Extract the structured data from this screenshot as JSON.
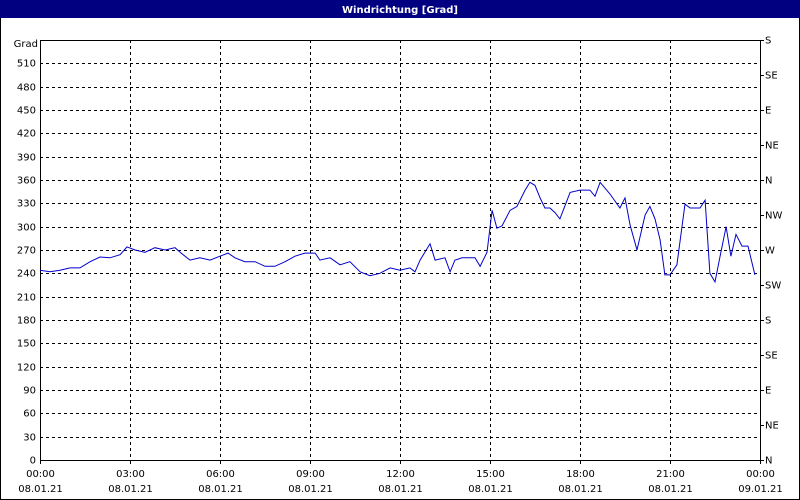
{
  "chart_data": {
    "type": "line",
    "title": "Windrichtung [Grad]",
    "y_label": "Grad",
    "x": [
      0,
      0.33,
      0.67,
      1,
      1.33,
      1.67,
      2,
      2.33,
      2.67,
      2.9,
      3.17,
      3.5,
      3.83,
      4.17,
      4.5,
      4.67,
      5,
      5.33,
      5.67,
      6,
      6.27,
      6.5,
      6.83,
      7.17,
      7.5,
      7.83,
      8.17,
      8.5,
      8.83,
      9.17,
      9.33,
      9.67,
      10,
      10.33,
      10.67,
      11,
      11.33,
      11.67,
      12,
      12.33,
      12.5,
      12.67,
      13,
      13.17,
      13.5,
      13.67,
      13.83,
      14.07,
      14.5,
      14.67,
      14.9,
      15.07,
      15.23,
      15.4,
      15.67,
      15.9,
      16.17,
      16.33,
      16.5,
      16.67,
      16.83,
      17,
      17.17,
      17.33,
      17.67,
      18,
      18.33,
      18.5,
      18.67,
      19,
      19.33,
      19.5,
      19.67,
      19.9,
      20.17,
      20.33,
      20.5,
      20.67,
      20.83,
      21,
      21.23,
      21.5,
      21.67,
      22,
      22.17,
      22.33,
      22.5,
      22.67,
      22.87,
      23.03,
      23.2,
      23.4,
      23.6,
      23.83
    ],
    "series": [
      {
        "name": "Windrichtung",
        "color": "#0000cc",
        "values": [
          244,
          242,
          244,
          247,
          247,
          255,
          261,
          260,
          264,
          274,
          270,
          267,
          273,
          270,
          273,
          267,
          257,
          260,
          257,
          262,
          266,
          260,
          255,
          255,
          249,
          249,
          255,
          262,
          266,
          266,
          257,
          260,
          251,
          255,
          242,
          237,
          240,
          247,
          244,
          247,
          242,
          257,
          278,
          257,
          260,
          242,
          257,
          260,
          260,
          249,
          267,
          321,
          298,
          301,
          321,
          326,
          347,
          357,
          353,
          337,
          324,
          324,
          318,
          310,
          344,
          347,
          347,
          339,
          357,
          342,
          324,
          337,
          302,
          270,
          315,
          326,
          310,
          283,
          238,
          238,
          251,
          329,
          324,
          324,
          334,
          240,
          229,
          262,
          300,
          262,
          290,
          275,
          275,
          238
        ]
      }
    ],
    "xlim": [
      0,
      24
    ],
    "xticks": [
      {
        "value": 0,
        "label": "00:00"
      },
      {
        "value": 3,
        "label": "03:00"
      },
      {
        "value": 6,
        "label": "06:00"
      },
      {
        "value": 9,
        "label": "09:00"
      },
      {
        "value": 12,
        "label": "12:00"
      },
      {
        "value": 15,
        "label": "15:00"
      },
      {
        "value": 18,
        "label": "18:00"
      },
      {
        "value": 21,
        "label": "21:00"
      },
      {
        "value": 24,
        "label": "00:00"
      }
    ],
    "xtick_dates": [
      "08.01.21",
      "08.01.21",
      "08.01.21",
      "08.01.21",
      "08.01.21",
      "08.01.21",
      "08.01.21",
      "08.01.21",
      "09.01.21"
    ],
    "ylim": [
      0,
      540
    ],
    "yticks": [
      0,
      30,
      60,
      90,
      120,
      150,
      180,
      210,
      240,
      270,
      300,
      330,
      360,
      390,
      420,
      450,
      480,
      510
    ],
    "y2lim": [
      0,
      540
    ],
    "y2ticks": [
      {
        "value": 0,
        "label": "N"
      },
      {
        "value": 45,
        "label": "NE"
      },
      {
        "value": 90,
        "label": "E"
      },
      {
        "value": 135,
        "label": "SE"
      },
      {
        "value": 180,
        "label": "S"
      },
      {
        "value": 225,
        "label": "SW"
      },
      {
        "value": 270,
        "label": "W"
      },
      {
        "value": 315,
        "label": "NW"
      },
      {
        "value": 360,
        "label": "N"
      },
      {
        "value": 405,
        "label": "NE"
      },
      {
        "value": 450,
        "label": "E"
      },
      {
        "value": 495,
        "label": "SE"
      },
      {
        "value": 540,
        "label": "S"
      }
    ],
    "grid": true
  }
}
